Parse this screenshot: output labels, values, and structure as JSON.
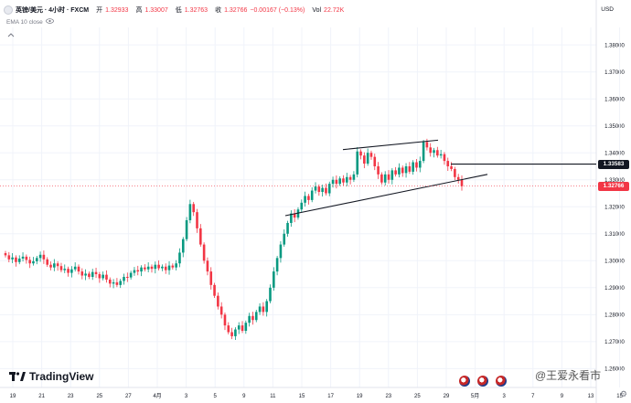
{
  "legend": {
    "symbol": "英镑/美元 · 4小时 · FXCM",
    "open_label": "开",
    "open": "1.32933",
    "high_label": "高",
    "high": "1.33007",
    "low_label": "低",
    "low": "1.32763",
    "close_label": "收",
    "close": "1.32766",
    "change": "−0.00167 (−0.13%)",
    "vol_label": "Vol",
    "vol": "22.72K"
  },
  "indicator": {
    "label": "EMA 10 close"
  },
  "currency": "USD",
  "price_labels": {
    "line_level": "1.33583",
    "last_price": "1.32766"
  },
  "brand": "TradingView",
  "watermark": "@王爱永看市",
  "icons": [
    "collapse-icon",
    "eye-icon",
    "settings-icon",
    "flag-icon"
  ],
  "colors": {
    "up": "#089981",
    "down": "#f23645",
    "line_label": "#131722",
    "price_label": "#f23645"
  },
  "chart_data": {
    "type": "candlestick",
    "y_ticks": [
      "1.38000",
      "1.37000",
      "1.36000",
      "1.35000",
      "1.34000",
      "1.33000",
      "1.32000",
      "1.31000",
      "1.30000",
      "1.29000",
      "1.28000",
      "1.27000",
      "1.26000"
    ],
    "x_ticks": [
      "19",
      "21",
      "23",
      "25",
      "27",
      "4月",
      "3",
      "5",
      "9",
      "11",
      "15",
      "17",
      "19",
      "23",
      "25",
      "29",
      "5月",
      "3",
      "7",
      "9",
      "13",
      "15"
    ],
    "ylim": [
      1.253,
      1.3865
    ],
    "horizontal_line": 1.33583,
    "last_price": 1.32766,
    "grid": true,
    "closes": [
      1.302,
      1.3005,
      1.3012,
      1.2995,
      1.3008,
      1.3015,
      1.3003,
      1.299,
      1.2998,
      1.301,
      1.3022,
      1.3005,
      1.2985,
      1.2975,
      1.299,
      1.298,
      1.2965,
      1.297,
      1.2955,
      1.2968,
      1.2978,
      1.296,
      1.2945,
      1.2952,
      1.294,
      1.2958,
      1.295,
      1.2935,
      1.2948,
      1.293,
      1.2915,
      1.292,
      1.291,
      1.2925,
      1.294,
      1.2938,
      1.2955,
      1.2965,
      1.296,
      1.2975,
      1.2968,
      1.2978,
      1.297,
      1.2985,
      1.2972,
      1.2978,
      1.2965,
      1.2982,
      1.2975,
      1.299,
      1.303,
      1.308,
      1.315,
      1.321,
      1.318,
      1.312,
      1.306,
      1.3,
      1.296,
      1.291,
      1.287,
      1.283,
      1.28,
      1.276,
      1.2735,
      1.272,
      1.2745,
      1.276,
      1.274,
      1.277,
      1.2795,
      1.278,
      1.281,
      1.283,
      1.281,
      1.285,
      1.29,
      1.296,
      1.301,
      1.306,
      1.31,
      1.314,
      1.3175,
      1.316,
      1.319,
      1.3215,
      1.324,
      1.3225,
      1.326,
      1.3275,
      1.3255,
      1.327,
      1.325,
      1.3285,
      1.33,
      1.3285,
      1.3305,
      1.329,
      1.331,
      1.33,
      1.332,
      1.3405,
      1.339,
      1.336,
      1.34,
      1.3385,
      1.335,
      1.332,
      1.329,
      1.332,
      1.33,
      1.3335,
      1.332,
      1.3345,
      1.3325,
      1.335,
      1.333,
      1.3365,
      1.3345,
      1.337,
      1.344,
      1.342,
      1.34,
      1.341,
      1.339,
      1.3395,
      1.337,
      1.335,
      1.334,
      1.331,
      1.33,
      1.32766
    ]
  }
}
